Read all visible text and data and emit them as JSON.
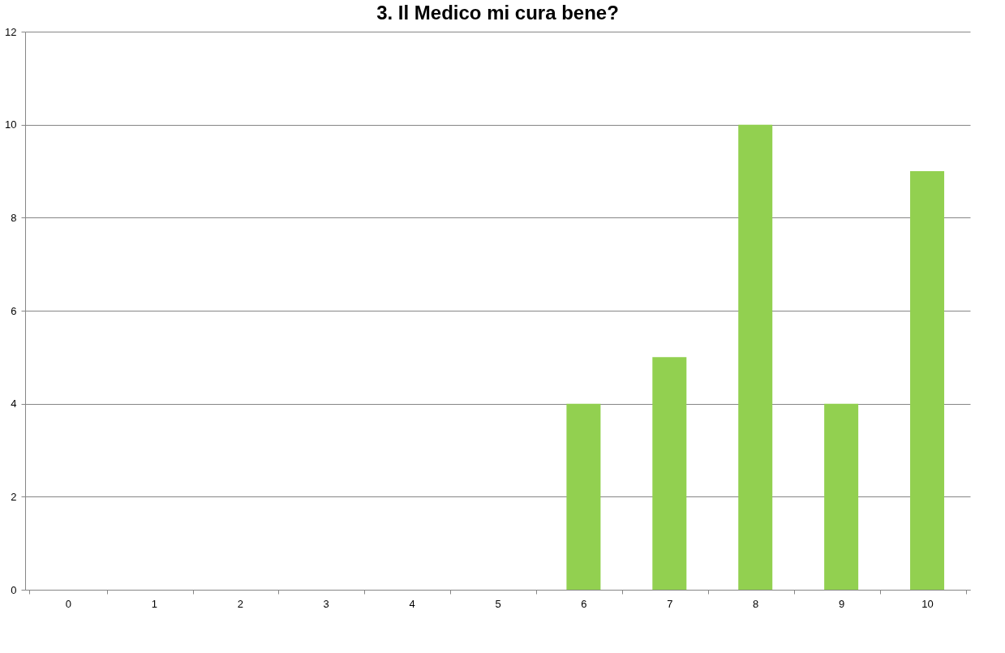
{
  "chart_data": {
    "type": "bar",
    "title": "3.    Il Medico mi cura bene?",
    "categories": [
      "0",
      "1",
      "2",
      "3",
      "4",
      "5",
      "6",
      "7",
      "8",
      "9",
      "10"
    ],
    "values": [
      0,
      0,
      0,
      0,
      0,
      0,
      4,
      5,
      10,
      4,
      9
    ],
    "color": "#92d050",
    "ylim": [
      0,
      12
    ],
    "yticks": [
      0,
      2,
      4,
      6,
      8,
      10,
      12
    ],
    "grid": "y"
  }
}
